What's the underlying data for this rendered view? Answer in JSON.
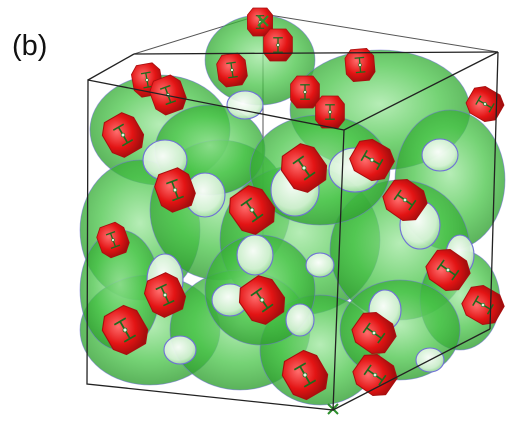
{
  "panel_label": "(b)",
  "colors": {
    "background": "#ffffff",
    "network": "#3fbf3f",
    "network_dark": "#2c8f2c",
    "pore_outline": "#6f6fd8",
    "cluster": "#ee1a1a",
    "cluster_dark": "#a80f0f",
    "box_edge": "#222222"
  },
  "icons": {
    "cluster_glyph": "green-linker-glyph"
  }
}
